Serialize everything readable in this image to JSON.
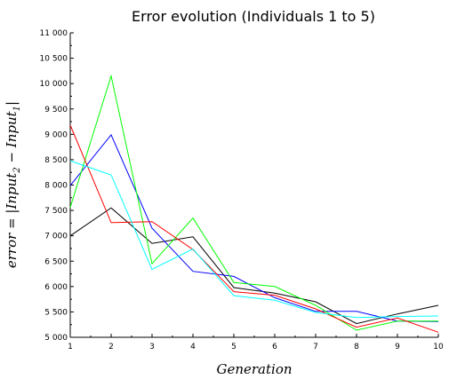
{
  "chart_data": {
    "type": "line",
    "title": "Error evolution (Individuals 1 to 5)",
    "xlabel": "Generation",
    "ylabel": {
      "prefix": "error = |Input",
      "sub1": "2",
      "middle": " − Input",
      "sub2": "1",
      "suffix": "|"
    },
    "x": [
      1,
      2,
      3,
      4,
      5,
      6,
      7,
      8,
      9,
      10
    ],
    "xlim": [
      1,
      10
    ],
    "ylim": [
      5000,
      11000
    ],
    "x_ticks": [
      "1",
      "2",
      "3",
      "4",
      "5",
      "6",
      "7",
      "8",
      "9",
      "10"
    ],
    "y_ticks": [
      {
        "value": 5000,
        "label": "5 000"
      },
      {
        "value": 5500,
        "label": "5 500"
      },
      {
        "value": 6000,
        "label": "6 000"
      },
      {
        "value": 6500,
        "label": "6 500"
      },
      {
        "value": 7000,
        "label": "7 000"
      },
      {
        "value": 7500,
        "label": "7 500"
      },
      {
        "value": 8000,
        "label": "8 000"
      },
      {
        "value": 8500,
        "label": "8 500"
      },
      {
        "value": 9000,
        "label": "9 000"
      },
      {
        "value": 9500,
        "label": "9 500"
      },
      {
        "value": 10000,
        "label": "10 000"
      },
      {
        "value": 10500,
        "label": "10 500"
      },
      {
        "value": 11000,
        "label": "11 000"
      }
    ],
    "grid": false,
    "legend": false,
    "series": [
      {
        "color": "#000000",
        "values": [
          7000,
          7550,
          6850,
          6980,
          5980,
          5870,
          5700,
          5270,
          5460,
          5630
        ]
      },
      {
        "color": "#0000ff",
        "values": [
          7990,
          8990,
          7150,
          6300,
          6200,
          5780,
          5510,
          5510,
          5320,
          5310
        ]
      },
      {
        "color": "#00ff00",
        "values": [
          7560,
          10150,
          6450,
          7350,
          6080,
          6000,
          5630,
          5140,
          5320,
          5320
        ]
      },
      {
        "color": "#ff0000",
        "values": [
          9180,
          7260,
          7280,
          6730,
          5900,
          5830,
          5560,
          5200,
          5380,
          5100
        ]
      },
      {
        "color": "#00ffff",
        "values": [
          8480,
          8200,
          6340,
          6740,
          5820,
          5730,
          5490,
          5390,
          5410,
          5420
        ]
      }
    ]
  }
}
